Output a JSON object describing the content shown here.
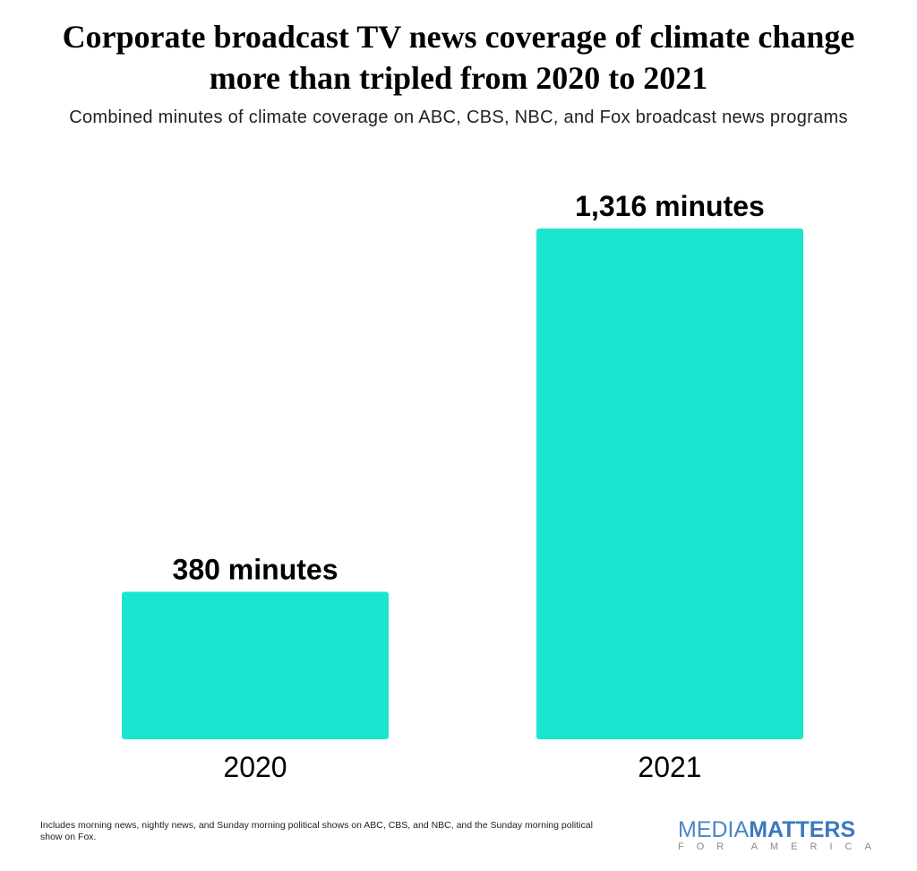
{
  "title_line1": "Corporate broadcast TV news coverage of climate change",
  "title_line2": "more than tripled from 2020 to 2021",
  "subtitle": "Combined minutes of climate coverage on ABC, CBS, NBC, and Fox broadcast news programs",
  "note": "Includes morning news, nightly news, and Sunday morning political shows on ABC, CBS, and NBC, and the Sunday morning political show on Fox.",
  "logo": {
    "part1": "MEDIA",
    "part2": "MATTERS",
    "part3": "FOR AMERICA"
  },
  "chart_data": {
    "type": "bar",
    "title": "Corporate broadcast TV news coverage of climate change more than tripled from 2020 to 2021",
    "subtitle": "Combined minutes of climate coverage on ABC, CBS, NBC, and Fox broadcast news programs",
    "categories": [
      "2020",
      "2021"
    ],
    "values": [
      380,
      1316
    ],
    "data_labels": [
      "380 minutes",
      "1,316 minutes"
    ],
    "unit": "minutes",
    "bar_color": "#1ae6cf",
    "grid": false,
    "ylim": [
      0,
      1316
    ]
  }
}
